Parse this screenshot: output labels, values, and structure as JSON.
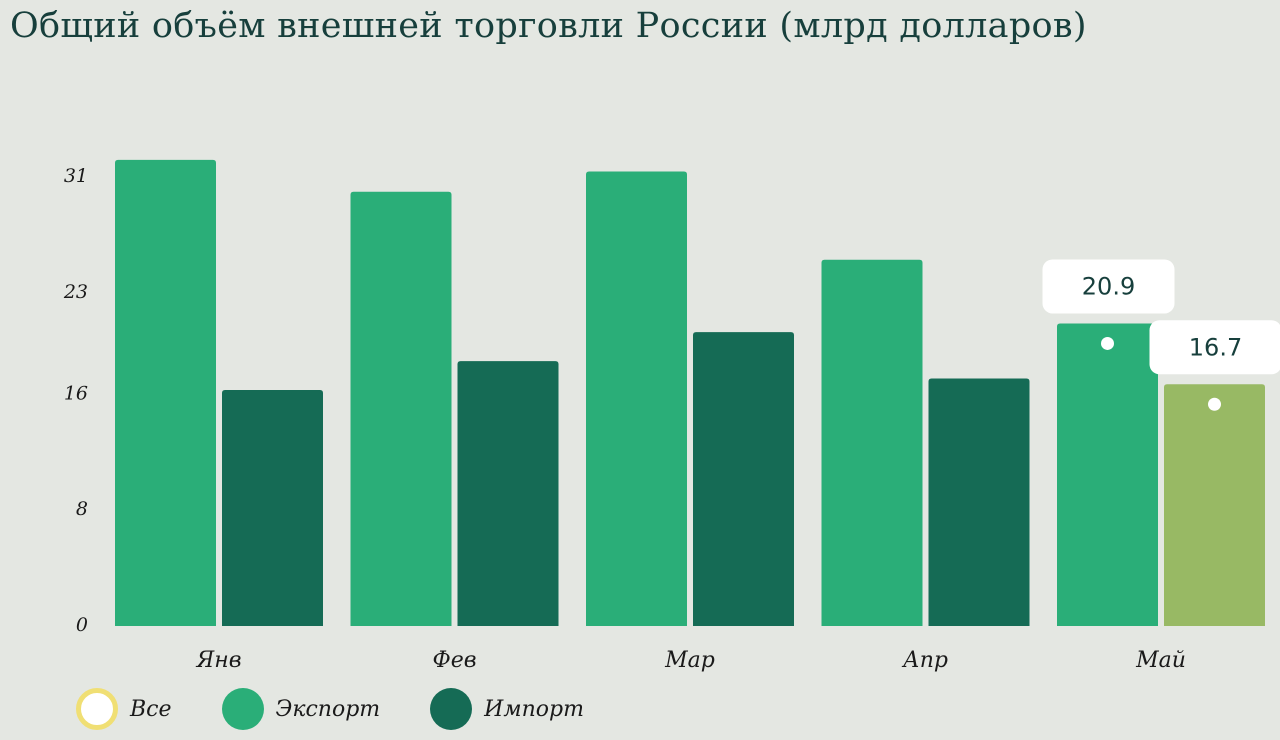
{
  "chart_data": {
    "type": "bar",
    "title": "Общий объём внешней торговли России (млрд долларов)",
    "categories": [
      "Янв",
      "Фев",
      "Мар",
      "Апр",
      "Май"
    ],
    "series": [
      {
        "name": "Экспорт",
        "color": "#2aae78",
        "values": [
          32.2,
          30.0,
          31.4,
          25.3,
          20.9
        ]
      },
      {
        "name": "Импорт",
        "color": "#156b55",
        "values": [
          16.3,
          18.3,
          20.3,
          17.1,
          16.7
        ]
      }
    ],
    "highlight_color": "#98b964",
    "highlight": {
      "category_index": 4,
      "series_index": 1
    },
    "yticks": [
      0,
      8,
      16,
      23,
      31
    ],
    "ylim": [
      0,
      35.3
    ],
    "callouts": [
      {
        "category_index": 4,
        "series_index": 0,
        "label": "20.9"
      },
      {
        "category_index": 4,
        "series_index": 1,
        "label": "16.7"
      }
    ],
    "legend": {
      "position": "bottom-left",
      "items": [
        {
          "label": "Все",
          "fill": "#ffffff",
          "border": "#f0df74"
        },
        {
          "label": "Экспорт",
          "fill": "#2aae78"
        },
        {
          "label": "Импорт",
          "fill": "#156b55"
        }
      ]
    }
  }
}
